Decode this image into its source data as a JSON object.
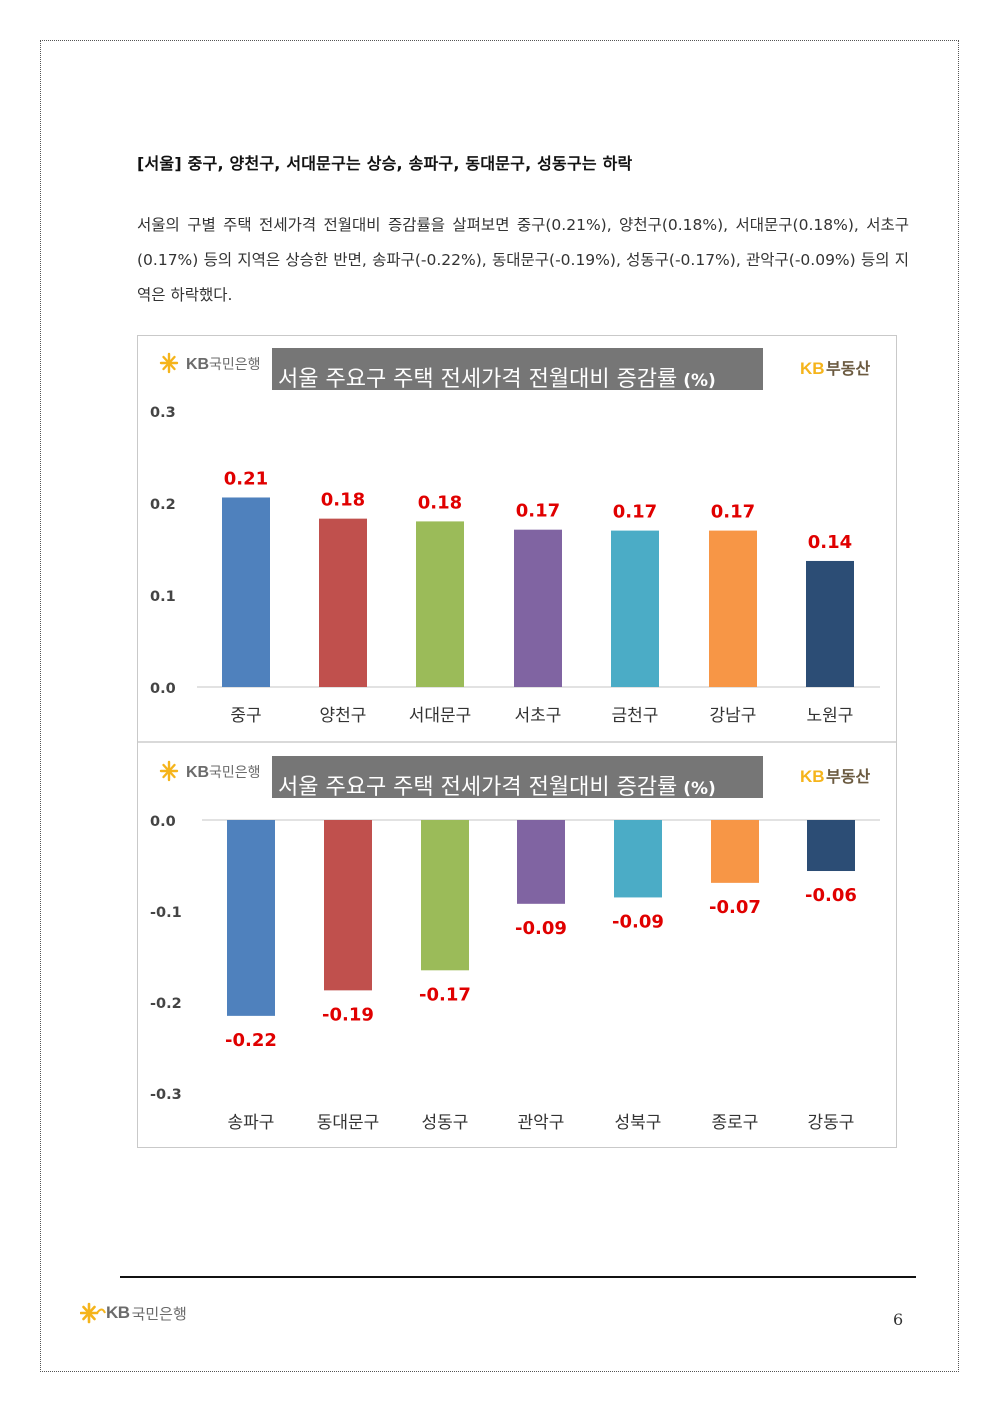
{
  "heading": "[서울] 중구, 양천구, 서대문구는 상승, 송파구, 동대문구, 성동구는 하락",
  "paragraph": "서울의 구별 주택 전세가격 전월대비 증감률을 살펴보면 중구(0.21%), 양천구(0.18%), 서대문구(0.18%), 서초구(0.17%) 등의 지역은 상승한 반면, 송파구(-0.22%), 동대문구(-0.19%), 성동구(-0.17%), 관악구(-0.09%) 등의 지역은 하락했다.",
  "logo": {
    "kb": "KB",
    "bank": "국민은행",
    "realestate": "부동산"
  },
  "page_number": "6",
  "colors": [
    "#4f81bd",
    "#c0504d",
    "#9bbb59",
    "#8064a2",
    "#4bacc6",
    "#f79646",
    "#2c4d75"
  ],
  "chart_data": [
    {
      "type": "bar",
      "title_main": "서울 주요구 주택 전세가격 전월대비 증감률",
      "title_unit": "(%)",
      "categories": [
        "중구",
        "양천구",
        "서대문구",
        "서초구",
        "금천구",
        "강남구",
        "노원구"
      ],
      "values": [
        0.21,
        0.18,
        0.18,
        0.17,
        0.17,
        0.17,
        0.14
      ],
      "bar_heights": [
        0.206,
        0.183,
        0.18,
        0.171,
        0.17,
        0.17,
        0.137
      ],
      "labels": [
        "0.21",
        "0.18",
        "0.18",
        "0.17",
        "0.17",
        "0.17",
        "0.14"
      ],
      "ylim": [
        0,
        0.3
      ],
      "yticks": [
        "0.0",
        "0.1",
        "0.2",
        "0.3"
      ]
    },
    {
      "type": "bar",
      "title_main": "서울 주요구 주택 전세가격 전월대비 증감률",
      "title_unit": "(%)",
      "categories": [
        "송파구",
        "동대문구",
        "성동구",
        "관악구",
        "성북구",
        "종로구",
        "강동구"
      ],
      "values": [
        -0.22,
        -0.19,
        -0.17,
        -0.09,
        -0.09,
        -0.07,
        -0.06
      ],
      "bar_heights": [
        -0.215,
        -0.187,
        -0.165,
        -0.092,
        -0.085,
        -0.069,
        -0.056
      ],
      "labels": [
        "-0.22",
        "-0.19",
        "-0.17",
        "-0.09",
        "-0.09",
        "-0.07",
        "-0.06"
      ],
      "ylim": [
        -0.3,
        0
      ],
      "yticks": [
        "0.0",
        "-0.1",
        "-0.2",
        "-0.3"
      ]
    }
  ]
}
